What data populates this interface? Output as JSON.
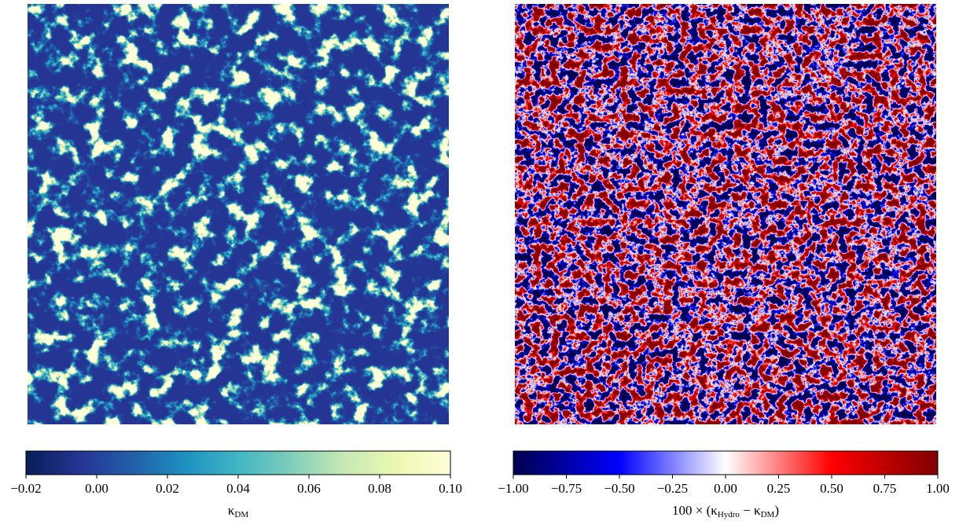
{
  "chart_data": [
    {
      "type": "heatmap",
      "colormap": [
        "#081d58",
        "#253494",
        "#225ea8",
        "#1d91c0",
        "#41b6c4",
        "#7fcdbb",
        "#c7e9b4",
        "#edf8b1",
        "#ffffd9"
      ],
      "colorbar_lim": [
        -0.02,
        0.1
      ],
      "colorbar_ticks": [
        {
          "value": -0.02,
          "label": "−0.02"
        },
        {
          "value": 0,
          "label": "0.00"
        },
        {
          "value": 0.02,
          "label": "0.02"
        },
        {
          "value": 0.04,
          "label": "0.04"
        },
        {
          "value": 0.06,
          "label": "0.06"
        },
        {
          "value": 0.08,
          "label": "0.08"
        },
        {
          "value": 0.1,
          "label": "0.10"
        }
      ],
      "colorbar_label": [
        {
          "text": "κ"
        },
        {
          "text": "DM",
          "sub": true
        }
      ]
    },
    {
      "type": "heatmap",
      "colormap": [
        "#00004c",
        "#0000ff",
        "#ffffff",
        "#ff0000",
        "#800000"
      ],
      "colorbar_lim": [
        -1,
        1
      ],
      "colorbar_ticks": [
        {
          "value": -1,
          "label": "−1.00"
        },
        {
          "value": -0.75,
          "label": "−0.75"
        },
        {
          "value": -0.5,
          "label": "−0.50"
        },
        {
          "value": -0.25,
          "label": "−0.25"
        },
        {
          "value": 0,
          "label": "0.00"
        },
        {
          "value": 0.25,
          "label": "0.25"
        },
        {
          "value": 0.5,
          "label": "0.50"
        },
        {
          "value": 0.75,
          "label": "0.75"
        },
        {
          "value": 1,
          "label": "1.00"
        }
      ],
      "colorbar_label": [
        {
          "text": "100 × (κ"
        },
        {
          "text": "Hydro",
          "sub": true
        },
        {
          "text": " − κ"
        },
        {
          "text": "DM",
          "sub": true
        },
        {
          "text": ")"
        }
      ]
    }
  ]
}
